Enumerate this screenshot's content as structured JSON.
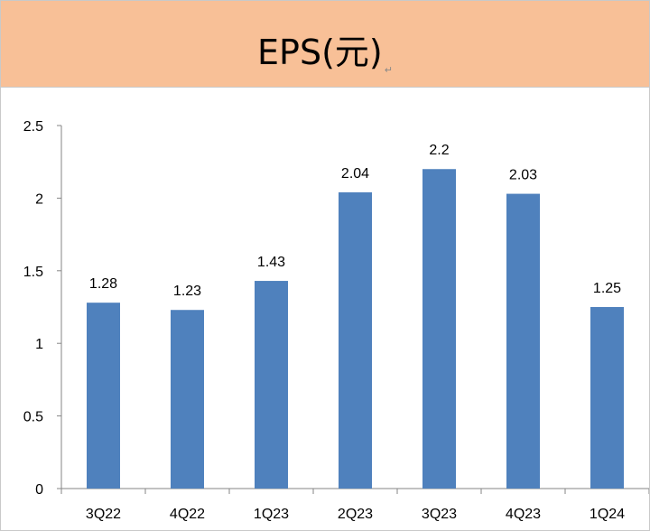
{
  "header": {
    "title": "EPS(元)",
    "para_mark": "↵",
    "background_color": "#f8c097"
  },
  "chart_data": {
    "type": "bar",
    "categories": [
      "3Q22",
      "4Q22",
      "1Q23",
      "2Q23",
      "3Q23",
      "4Q23",
      "1Q24"
    ],
    "values": [
      1.28,
      1.23,
      1.43,
      2.04,
      2.2,
      2.03,
      1.25
    ],
    "data_labels": [
      "1.28",
      "1.23",
      "1.43",
      "2.04",
      "2.2",
      "2.03",
      "1.25"
    ],
    "yticks": [
      "0",
      "0.5",
      "1",
      "1.5",
      "2",
      "2.5"
    ],
    "ylim": [
      0,
      2.5
    ],
    "bar_color": "#4f81bd",
    "grid": false,
    "legend": "none"
  }
}
